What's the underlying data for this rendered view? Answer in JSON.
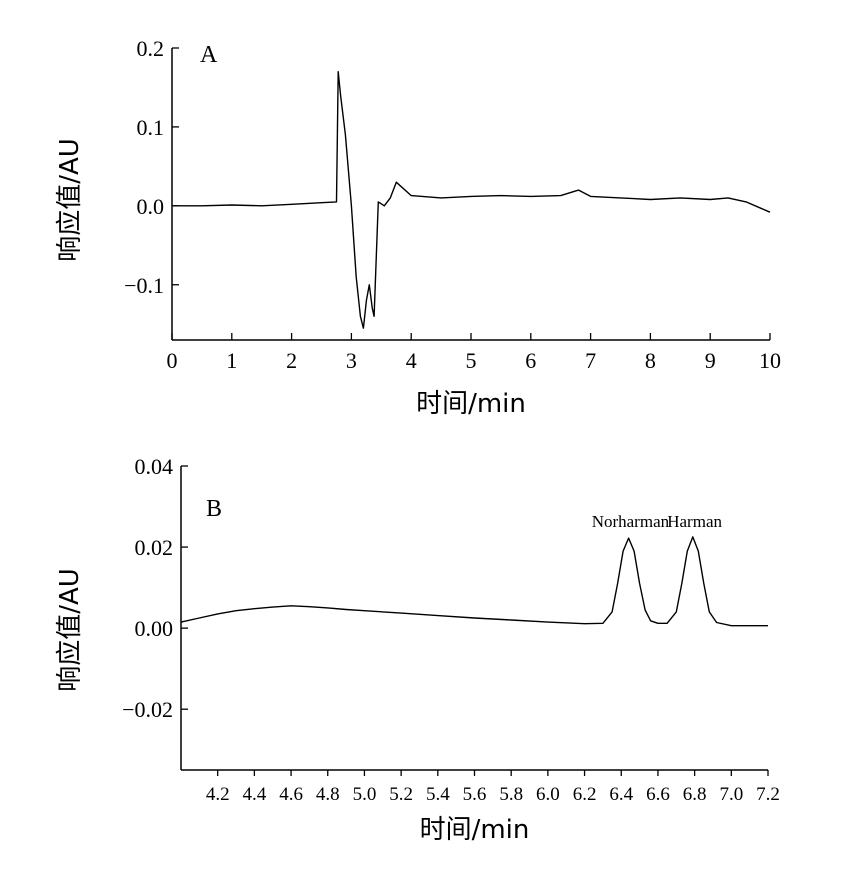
{
  "chart_data": [
    {
      "type": "line",
      "panel_label": "A",
      "xlabel": "时间/min",
      "ylabel": "响应值/AU",
      "xlim": [
        0,
        10
      ],
      "ylim": [
        -0.17,
        0.2
      ],
      "x_ticks": [
        0,
        1,
        2,
        3,
        4,
        5,
        6,
        7,
        8,
        9,
        10
      ],
      "x_tick_labels": [
        "0",
        "1",
        "2",
        "3",
        "4",
        "5",
        "6",
        "7",
        "8",
        "9",
        "10"
      ],
      "y_ticks": [
        -0.1,
        0.0,
        0.1,
        0.2
      ],
      "y_tick_labels": [
        "−0.1",
        "0.0",
        "0.1",
        "0.2"
      ],
      "grid": false,
      "series": [
        {
          "x": [
            0,
            0.5,
            1,
            1.5,
            2,
            2.5,
            2.75,
            2.78,
            2.82,
            2.9,
            3.0,
            3.08,
            3.15,
            3.2,
            3.25,
            3.3,
            3.35,
            3.38,
            3.45,
            3.55,
            3.65,
            3.75,
            4.0,
            4.5,
            5.0,
            5.5,
            6.0,
            6.5,
            6.8,
            7.0,
            7.5,
            8.0,
            8.5,
            9.0,
            9.3,
            9.6,
            10.0
          ],
          "y": [
            0.0,
            0.0,
            0.001,
            0.0,
            0.002,
            0.004,
            0.005,
            0.17,
            0.14,
            0.09,
            0.0,
            -0.09,
            -0.14,
            -0.155,
            -0.12,
            -0.1,
            -0.13,
            -0.14,
            0.005,
            0.0,
            0.01,
            0.03,
            0.013,
            0.01,
            0.012,
            0.013,
            0.012,
            0.013,
            0.02,
            0.012,
            0.01,
            0.008,
            0.01,
            0.008,
            0.01,
            0.005,
            -0.008
          ]
        }
      ]
    },
    {
      "type": "line",
      "panel_label": "B",
      "xlabel": "时间/min",
      "ylabel": "响应值/AU",
      "xlim": [
        4.0,
        7.2
      ],
      "ylim": [
        -0.035,
        0.04
      ],
      "x_ticks": [
        4.2,
        4.4,
        4.6,
        4.8,
        5.0,
        5.2,
        5.4,
        5.6,
        5.8,
        6.0,
        6.2,
        6.4,
        6.6,
        6.8,
        7.0,
        7.2
      ],
      "x_tick_labels": [
        "4.2",
        "4.4",
        "4.6",
        "4.8",
        "5.0",
        "5.2",
        "5.4",
        "5.6",
        "5.8",
        "6.0",
        "6.2",
        "6.4",
        "6.6",
        "6.8",
        "7.0",
        "7.2"
      ],
      "y_ticks": [
        -0.02,
        0.0,
        0.02,
        0.04
      ],
      "y_tick_labels": [
        "−0.02",
        "0.00",
        "0.02",
        "0.04"
      ],
      "grid": false,
      "annotations": [
        {
          "text": "Norharman",
          "x": 6.45,
          "y": 0.025
        },
        {
          "text": "Harman",
          "x": 6.8,
          "y": 0.025
        }
      ],
      "series": [
        {
          "x": [
            4.0,
            4.1,
            4.2,
            4.3,
            4.4,
            4.5,
            4.6,
            4.7,
            4.8,
            4.9,
            5.0,
            5.2,
            5.4,
            5.6,
            5.8,
            6.0,
            6.2,
            6.3,
            6.35,
            6.38,
            6.41,
            6.44,
            6.47,
            6.5,
            6.53,
            6.56,
            6.6,
            6.65,
            6.7,
            6.73,
            6.76,
            6.79,
            6.82,
            6.85,
            6.88,
            6.92,
            7.0,
            7.2
          ],
          "y": [
            0.0015,
            0.0025,
            0.0035,
            0.0043,
            0.0048,
            0.0052,
            0.0055,
            0.0053,
            0.005,
            0.0046,
            0.0043,
            0.0037,
            0.0031,
            0.0025,
            0.002,
            0.0015,
            0.0011,
            0.0012,
            0.004,
            0.011,
            0.019,
            0.0222,
            0.019,
            0.011,
            0.0045,
            0.0018,
            0.0012,
            0.0012,
            0.004,
            0.011,
            0.019,
            0.0225,
            0.019,
            0.011,
            0.004,
            0.0014,
            0.0006,
            0.0006
          ]
        }
      ]
    }
  ]
}
